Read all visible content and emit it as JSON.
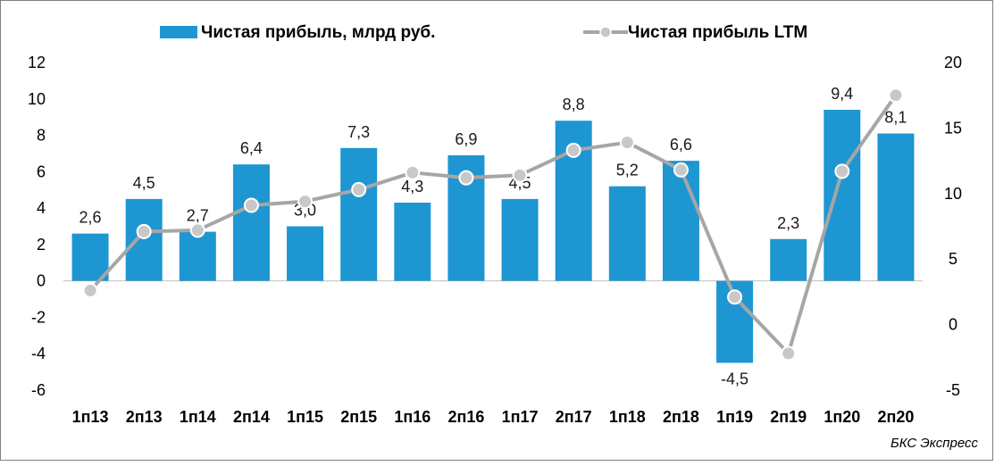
{
  "chart_data": {
    "type": "bar+line",
    "categories": [
      "1п13",
      "2п13",
      "1п14",
      "2п14",
      "1п15",
      "2п15",
      "1п16",
      "2п16",
      "1п17",
      "2п17",
      "1п18",
      "2п18",
      "1п19",
      "2п19",
      "1п20",
      "2п20"
    ],
    "series": [
      {
        "name": "Чистая прибыль, млрд руб.",
        "type": "bar",
        "axis": "left",
        "color": "#1e96d2",
        "values": [
          2.6,
          4.5,
          2.7,
          6.4,
          3.0,
          7.3,
          4.3,
          6.9,
          4.5,
          8.8,
          5.2,
          6.6,
          -4.5,
          2.3,
          9.4,
          8.1
        ],
        "labels": [
          "2,6",
          "4,5",
          "2,7",
          "6,4",
          "3,0",
          "7,3",
          "4,3",
          "6,9",
          "4,5",
          "8,8",
          "5,2",
          "6,6",
          "-4,5",
          "2,3",
          "9,4",
          "8,1"
        ]
      },
      {
        "name": "Чистая прибыль LTM",
        "type": "line",
        "axis": "right",
        "color": "#a6a6a6",
        "values": [
          2.6,
          7.1,
          7.2,
          9.1,
          9.4,
          10.3,
          11.6,
          11.2,
          11.4,
          13.3,
          13.9,
          11.8,
          2.1,
          -2.2,
          11.7,
          17.5
        ]
      }
    ],
    "y_left": {
      "ylim": [
        -6,
        12
      ],
      "ticks": [
        -6,
        -4,
        -2,
        0,
        2,
        4,
        6,
        8,
        10,
        12
      ]
    },
    "y_right": {
      "ylim": [
        -5,
        20
      ],
      "ticks": [
        -5,
        0,
        5,
        10,
        15,
        20
      ]
    },
    "legend_position": "top-center",
    "source": "БКС Экспресс"
  }
}
